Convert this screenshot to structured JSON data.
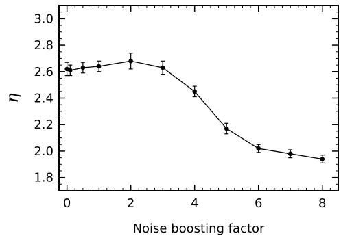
{
  "chart_data": {
    "type": "line",
    "title": "",
    "xlabel": "Noise boosting factor",
    "ylabel": "η",
    "xlim": [
      -0.25,
      8.5
    ],
    "ylim": [
      1.7,
      3.1
    ],
    "xticks": [
      0,
      2,
      4,
      6,
      8
    ],
    "yticks": [
      1.8,
      2.0,
      2.2,
      2.4,
      2.6,
      2.8,
      3.0
    ],
    "xtick_labels": [
      "0",
      "2",
      "4",
      "6",
      "8"
    ],
    "ytick_labels": [
      "1.8",
      "2.0",
      "2.2",
      "2.4",
      "2.6",
      "2.8",
      "3.0"
    ],
    "grid": false,
    "legend": "none",
    "series": [
      {
        "x": [
          0,
          0.1,
          0.5,
          1,
          2,
          3,
          4,
          5,
          6,
          7,
          8
        ],
        "y": [
          2.62,
          2.61,
          2.63,
          2.64,
          2.68,
          2.63,
          2.45,
          2.17,
          2.02,
          1.98,
          1.94
        ],
        "err": [
          0.05,
          0.04,
          0.04,
          0.04,
          0.06,
          0.05,
          0.04,
          0.04,
          0.03,
          0.03,
          0.03
        ]
      }
    ]
  },
  "colors": {
    "line": "#000000",
    "axis": "#000000",
    "background": "#ffffff"
  }
}
